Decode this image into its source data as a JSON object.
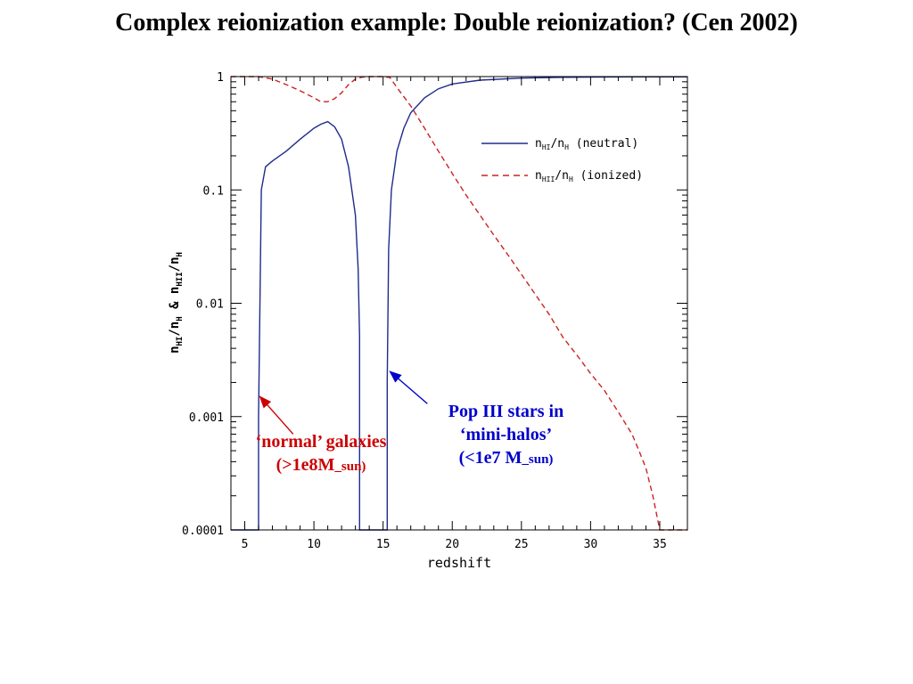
{
  "slide": {
    "title": "Complex reionization example: Double reionization? (Cen 2002)"
  },
  "annotations": {
    "normal": {
      "line1": "‘normal’ galaxies",
      "line2_prefix": "(>1e8M",
      "line2_sub": "_sun",
      "line2_suffix": ")",
      "color": "#cc0000"
    },
    "pop3": {
      "line1": "Pop III stars in",
      "line2": "‘mini-halos’",
      "line3_prefix": "(<1e7 M",
      "line3_sub": "_sun",
      "line3_suffix": ")",
      "color": "#0000cc"
    }
  },
  "chart_data": {
    "type": "line",
    "xlabel": "redshift",
    "ylabel_parts": {
      "a": "n",
      "a_sub": "HI",
      "b": "/n",
      "b_sub": "H",
      "amp": " & ",
      "c": "n",
      "c_sub": "HII",
      "d": "/n",
      "d_sub": "H"
    },
    "xlim": [
      4,
      37
    ],
    "ylim": [
      0.0001,
      1
    ],
    "yscale": "log",
    "xticks": [
      5,
      10,
      15,
      20,
      25,
      30,
      35
    ],
    "xtick_labels": [
      "5",
      "10",
      "15",
      "20",
      "25",
      "30",
      "35"
    ],
    "yticks": [
      0.0001,
      0.001,
      0.01,
      0.1,
      1
    ],
    "ytick_labels": [
      "0.0001",
      "0.001",
      "0.01",
      "0.1",
      "1"
    ],
    "legend": {
      "position": "top-right",
      "entries": [
        {
          "label_main": "n",
          "label_sub1": "HI",
          "label_mid": "/n",
          "label_sub2": "H",
          "label_tail": " (neutral)"
        },
        {
          "label_main": "n",
          "label_sub1": "HII",
          "label_mid": "/n",
          "label_sub2": "H",
          "label_tail": " (ionized)"
        }
      ]
    },
    "series": [
      {
        "name": "n_HI/n_H (neutral)",
        "color": "#1f2b8c",
        "dash": "solid",
        "x": [
          4,
          5,
          6,
          6,
          6.2,
          6.5,
          7,
          8,
          9,
          10,
          10.5,
          11,
          11.5,
          12,
          12.5,
          13,
          13.2,
          13.3,
          13.3,
          15.3,
          15.3,
          15.4,
          15.6,
          16,
          16.5,
          17,
          18,
          19,
          20,
          22,
          25,
          28,
          30,
          33,
          37
        ],
        "y": [
          0.0001,
          0.0001,
          0.0001,
          0.001,
          0.1,
          0.16,
          0.18,
          0.22,
          0.28,
          0.35,
          0.38,
          0.4,
          0.36,
          0.28,
          0.16,
          0.06,
          0.02,
          0.005,
          0.0001,
          0.0001,
          0.002,
          0.03,
          0.1,
          0.22,
          0.35,
          0.48,
          0.65,
          0.78,
          0.86,
          0.93,
          0.97,
          0.985,
          0.99,
          0.995,
          0.995
        ]
      },
      {
        "name": "n_HII/n_H (ionized)",
        "color": "#cc2222",
        "dash": "dashed",
        "x": [
          4,
          5,
          6,
          7,
          8,
          9,
          10,
          10.5,
          11,
          11.5,
          12,
          12.5,
          13,
          13.5,
          14,
          15,
          15.5,
          16,
          17,
          18,
          19,
          20,
          21,
          22,
          23,
          24,
          25,
          26,
          27,
          28,
          29,
          30,
          31,
          32,
          33,
          33.5,
          34,
          34.5,
          35,
          37
        ],
        "y": [
          1,
          1,
          1,
          0.95,
          0.85,
          0.75,
          0.65,
          0.6,
          0.6,
          0.64,
          0.72,
          0.85,
          0.95,
          0.99,
          1,
          1,
          0.98,
          0.8,
          0.55,
          0.35,
          0.22,
          0.14,
          0.09,
          0.06,
          0.04,
          0.027,
          0.018,
          0.012,
          0.008,
          0.005,
          0.0035,
          0.0024,
          0.0017,
          0.0011,
          0.0007,
          0.0005,
          0.00035,
          0.0002,
          0.0001,
          0.0001
        ]
      }
    ],
    "arrows": [
      {
        "name": "normal-galaxies-arrow",
        "color": "#cc0000",
        "from": [
          8.5,
          0.0007
        ],
        "to": [
          6.1,
          0.0015
        ]
      },
      {
        "name": "pop3-arrow",
        "color": "#0000cc",
        "from": [
          18.2,
          0.0013
        ],
        "to": [
          15.5,
          0.0025
        ]
      }
    ]
  }
}
